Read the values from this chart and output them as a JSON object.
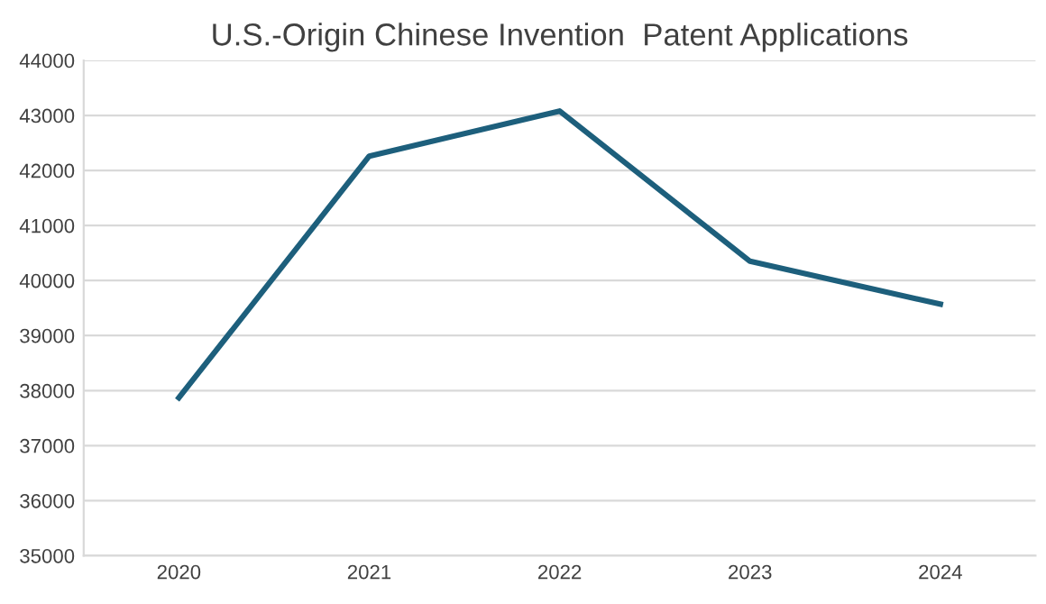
{
  "chart_data": {
    "type": "line",
    "title": "U.S.-Origin Chinese Invention  Patent Applications",
    "categories": [
      "2020",
      "2021",
      "2022",
      "2023",
      "2024"
    ],
    "series": [
      {
        "color": "#1d5f7c",
        "values": [
          37870,
          42260,
          43080,
          40350,
          39570
        ]
      }
    ],
    "ylim": [
      35000,
      44000
    ],
    "yticks": [
      35000,
      36000,
      37000,
      38000,
      39000,
      40000,
      41000,
      42000,
      43000,
      44000
    ],
    "grid": "y",
    "legend": false,
    "marker": "none",
    "line_style": "solid"
  }
}
